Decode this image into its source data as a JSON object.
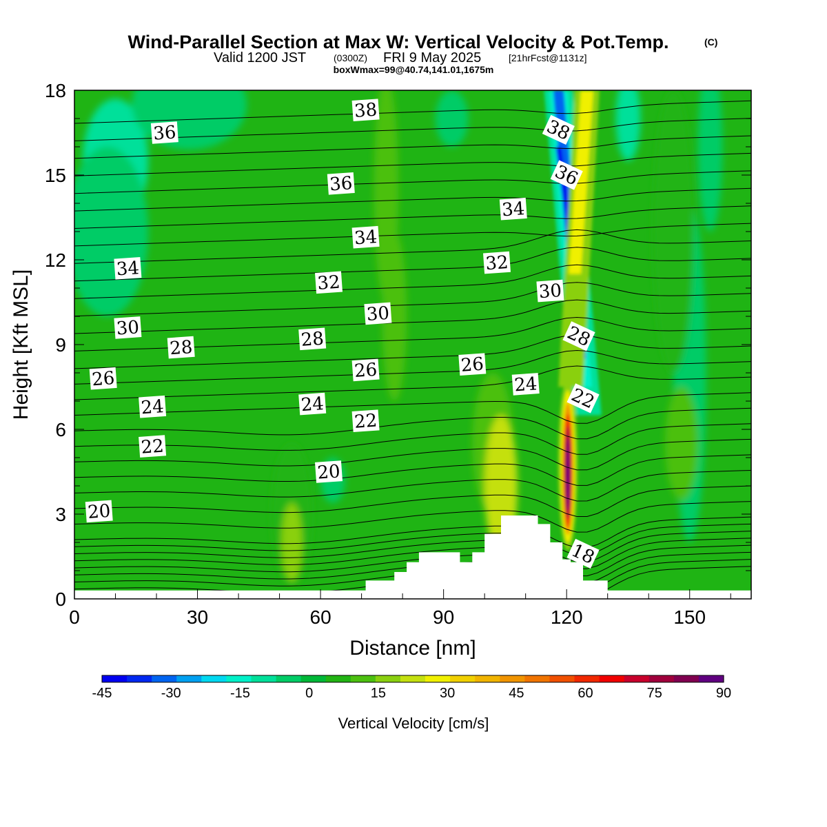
{
  "title": {
    "main": "Wind-Parallel Section at Max W: Vertical Velocity & Pot.Temp.",
    "copyright": "(C)",
    "valid_prefix": "Valid 1200 JST",
    "valid_utc": "(0300Z)",
    "valid_date": "FRI 9 May 2025",
    "forecast": "[21hrFcst@1131z]",
    "box_info": "boxWmax=99@40.74,141.01,1675m"
  },
  "chart_data": {
    "type": "heatmap",
    "xlabel": "Distance [nm]",
    "ylabel": "Height [Kft MSL]",
    "xlim": [
      0,
      165
    ],
    "ylim": [
      0,
      18
    ],
    "xticks": [
      0,
      30,
      60,
      90,
      120,
      150
    ],
    "yticks": [
      0,
      3,
      6,
      9,
      12,
      15,
      18
    ],
    "colorbar": {
      "label": "Vertical Velocity [cm/s]",
      "min": -45,
      "max": 90,
      "ticks": [
        -45,
        -30,
        -15,
        0,
        15,
        30,
        45,
        60,
        75,
        90
      ],
      "colors": [
        "#0000f0",
        "#0028f0",
        "#0064f0",
        "#00a0f0",
        "#00d8f0",
        "#00f0c8",
        "#00e09a",
        "#00cc66",
        "#00b838",
        "#22b414",
        "#4cc010",
        "#8ad010",
        "#c4e010",
        "#f0f000",
        "#f0d000",
        "#f0b400",
        "#f09400",
        "#f07400",
        "#f05000",
        "#f02800",
        "#f00000",
        "#c8002c",
        "#a0003c",
        "#800050",
        "#600080"
      ]
    },
    "updraft": {
      "core_x": 120,
      "core_y_bottom": 1.4,
      "core_y_top": 7.5,
      "max_value": 90,
      "tilt_to_x": 125,
      "tilt_top_y": 18,
      "description_value_peak_height": 5
    },
    "downdraft": {
      "upper_x": 118,
      "lower_x": 124,
      "y_bottom": 6.5,
      "y_top": 18,
      "min_value": -45
    },
    "theta_contour_labels": [
      {
        "text": "38",
        "x": 71,
        "y": 17.3
      },
      {
        "text": "38",
        "x": 118,
        "y": 16.6
      },
      {
        "text": "36",
        "x": 22,
        "y": 16.5
      },
      {
        "text": "36",
        "x": 65,
        "y": 14.7
      },
      {
        "text": "36",
        "x": 120,
        "y": 15
      },
      {
        "text": "34",
        "x": 13,
        "y": 11.7
      },
      {
        "text": "34",
        "x": 71,
        "y": 12.8
      },
      {
        "text": "34",
        "x": 107,
        "y": 13.8
      },
      {
        "text": "32",
        "x": 62,
        "y": 11.2
      },
      {
        "text": "32",
        "x": 103,
        "y": 11.9
      },
      {
        "text": "30",
        "x": 13,
        "y": 9.6
      },
      {
        "text": "30",
        "x": 74,
        "y": 10.1
      },
      {
        "text": "30",
        "x": 116,
        "y": 10.9
      },
      {
        "text": "28",
        "x": 26,
        "y": 8.9
      },
      {
        "text": "28",
        "x": 58,
        "y": 9.2
      },
      {
        "text": "28",
        "x": 123,
        "y": 9.3
      },
      {
        "text": "26",
        "x": 7,
        "y": 7.8
      },
      {
        "text": "26",
        "x": 71,
        "y": 8.1
      },
      {
        "text": "26",
        "x": 97,
        "y": 8.3
      },
      {
        "text": "24",
        "x": 19,
        "y": 6.8
      },
      {
        "text": "24",
        "x": 58,
        "y": 6.9
      },
      {
        "text": "24",
        "x": 110,
        "y": 7.6
      },
      {
        "text": "22",
        "x": 19,
        "y": 5.4
      },
      {
        "text": "22",
        "x": 71,
        "y": 6.3
      },
      {
        "text": "22",
        "x": 124,
        "y": 7.1
      },
      {
        "text": "20",
        "x": 6,
        "y": 3.1
      },
      {
        "text": "20",
        "x": 62,
        "y": 4.5
      },
      {
        "text": "18",
        "x": 124,
        "y": 1.6
      }
    ],
    "terrain": [
      [
        0,
        0.3
      ],
      [
        71,
        0.3
      ],
      [
        71,
        0.65
      ],
      [
        78,
        0.65
      ],
      [
        78,
        0.95
      ],
      [
        81,
        0.95
      ],
      [
        81,
        1.3
      ],
      [
        84,
        1.3
      ],
      [
        84,
        1.65
      ],
      [
        94,
        1.65
      ],
      [
        94,
        1.3
      ],
      [
        97,
        1.3
      ],
      [
        97,
        1.65
      ],
      [
        100,
        1.65
      ],
      [
        100,
        2.3
      ],
      [
        104,
        2.3
      ],
      [
        104,
        2.95
      ],
      [
        113,
        2.95
      ],
      [
        113,
        2.65
      ],
      [
        116,
        2.65
      ],
      [
        116,
        2.0
      ],
      [
        119,
        2.0
      ],
      [
        119,
        1.4
      ],
      [
        121,
        1.4
      ],
      [
        121,
        1.3
      ],
      [
        124,
        1.3
      ],
      [
        124,
        0.65
      ],
      [
        130,
        0.65
      ],
      [
        130,
        0.3
      ],
      [
        165,
        0.3
      ]
    ]
  }
}
